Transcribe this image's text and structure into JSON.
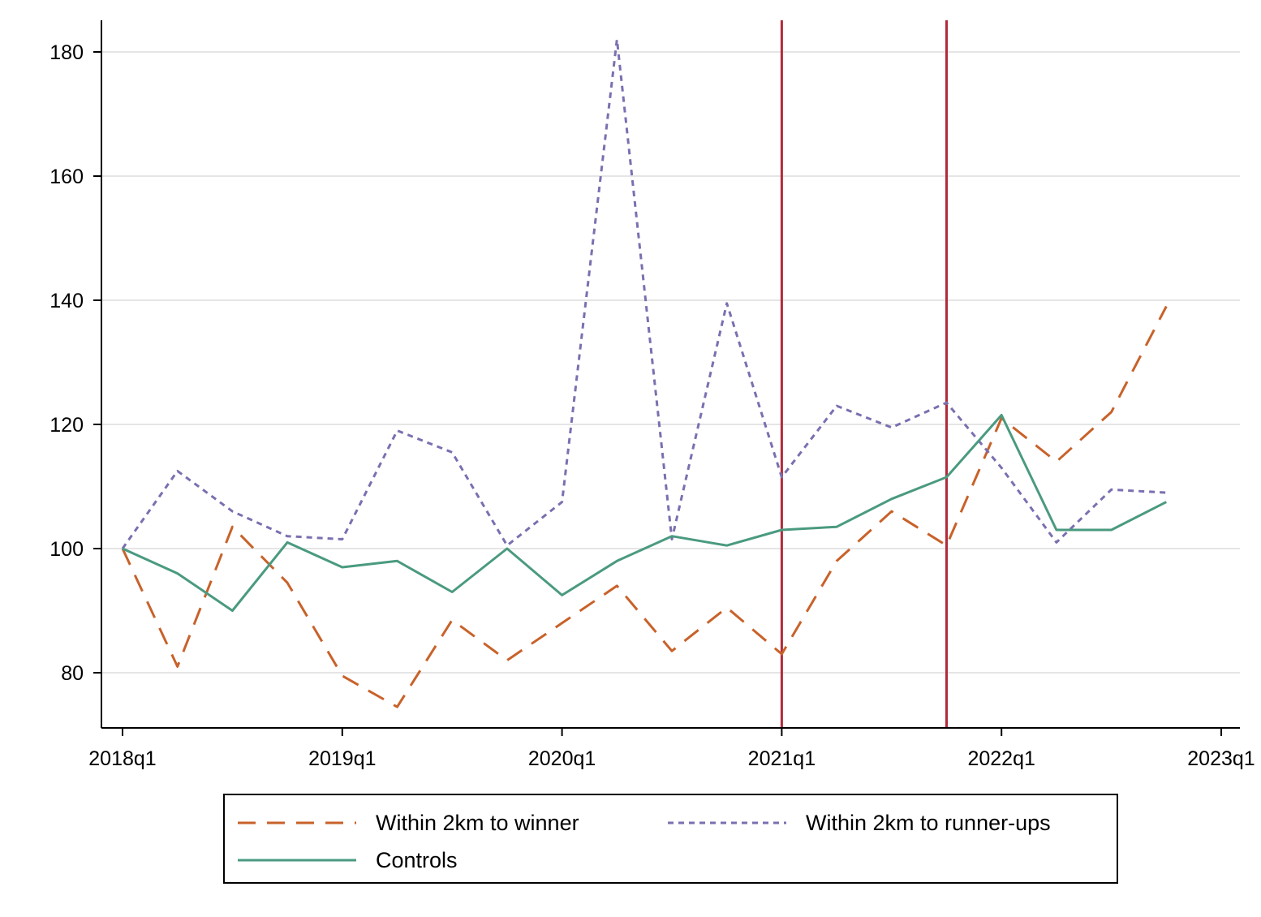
{
  "chart_data": {
    "type": "line",
    "title": "",
    "xlabel": "",
    "ylabel": "",
    "x": [
      "2018q1",
      "2018q2",
      "2018q3",
      "2018q4",
      "2019q1",
      "2019q2",
      "2019q3",
      "2019q4",
      "2020q1",
      "2020q2",
      "2020q3",
      "2020q4",
      "2021q1",
      "2021q2",
      "2021q3",
      "2021q4",
      "2022q1",
      "2022q2",
      "2022q3",
      "2022q4"
    ],
    "xticks": [
      "2018q1",
      "2019q1",
      "2020q1",
      "2021q1",
      "2022q1",
      "2023q1"
    ],
    "yticks": [
      80,
      100,
      120,
      140,
      160,
      180
    ],
    "ylim": [
      71,
      186
    ],
    "grid": "horizontal",
    "legend_position": "bottom",
    "vertical_lines": [
      "2021q1",
      "2021q4"
    ],
    "series": [
      {
        "name": "Within 2km to winner",
        "style": "long-dash",
        "color": "#c8622a",
        "values": [
          100,
          81,
          103.5,
          94.5,
          79.5,
          74.5,
          88.5,
          82,
          88,
          94,
          83.5,
          90.5,
          83,
          98,
          106,
          100.5,
          121,
          114,
          122,
          139
        ]
      },
      {
        "name": "Within 2km to runner-ups",
        "style": "short-dash",
        "color": "#7b6fb0",
        "values": [
          100,
          112.5,
          106,
          102,
          101.5,
          119,
          115.5,
          100.5,
          107.5,
          182,
          101.5,
          139.5,
          111.5,
          123,
          119.5,
          123.5,
          113,
          101,
          109.5,
          109
        ]
      },
      {
        "name": "Controls",
        "style": "solid",
        "color": "#4a9a80",
        "values": [
          100,
          96,
          90,
          101,
          97,
          98,
          93,
          100,
          92.5,
          98,
          102,
          100.5,
          103,
          103.5,
          108,
          111.5,
          121.5,
          103,
          103,
          107.5
        ]
      }
    ],
    "colors": {
      "axis": "#000000",
      "grid": "#e5e5e5",
      "vline": "#b22a3a"
    }
  }
}
